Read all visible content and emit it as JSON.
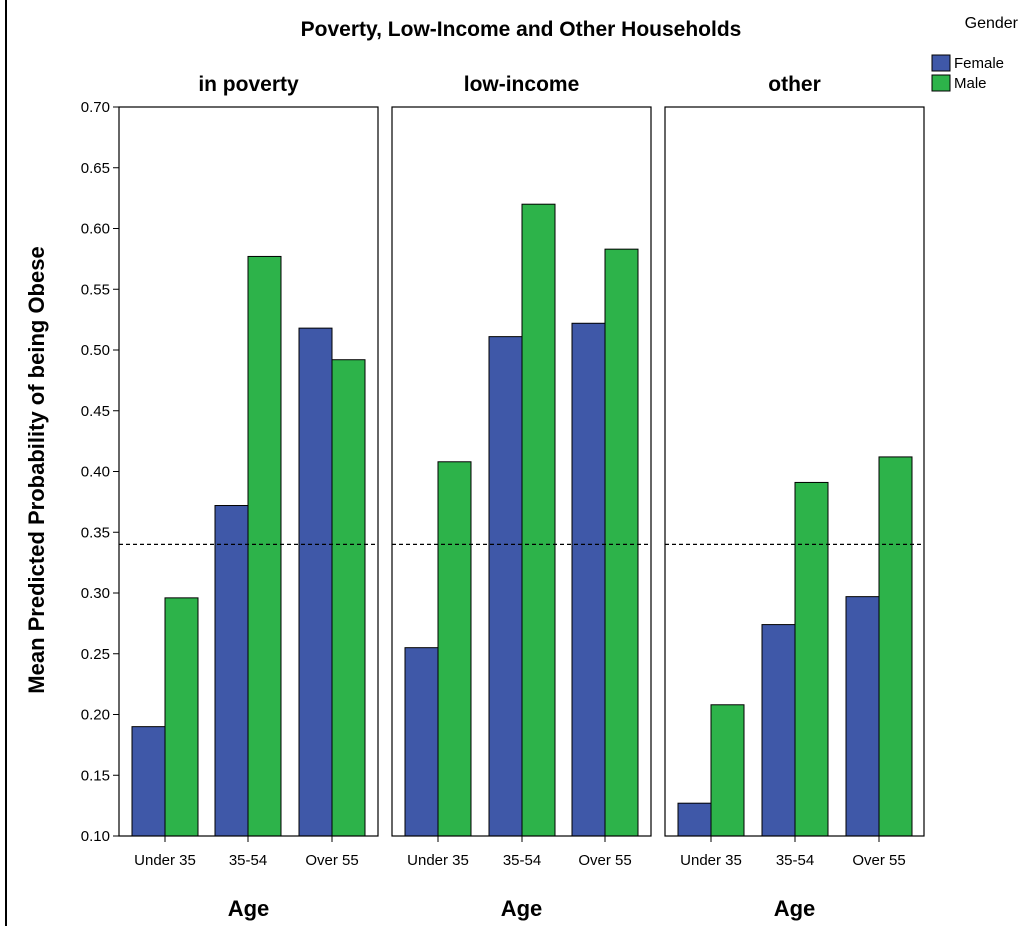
{
  "chart_data": {
    "type": "bar",
    "title": "Poverty, Low-Income and Other Households",
    "ylabel": "Mean Predicted Probability of being Obese",
    "xlabel": "Age",
    "ylim": [
      0.1,
      0.7
    ],
    "yticks": [
      "0.10",
      "0.15",
      "0.20",
      "0.25",
      "0.30",
      "0.35",
      "0.40",
      "0.45",
      "0.50",
      "0.55",
      "0.60",
      "0.65",
      "0.70"
    ],
    "reference_line": 0.34,
    "categories": [
      "Under 35",
      "35-54",
      "Over 55"
    ],
    "legend": {
      "title": "Gender",
      "placement": "top-right"
    },
    "colors": {
      "Female": "#3f58a8",
      "Male": "#2db34a"
    },
    "panels": [
      {
        "title": "in poverty",
        "series": [
          {
            "name": "Female",
            "values": [
              0.19,
              0.372,
              0.518
            ]
          },
          {
            "name": "Male",
            "values": [
              0.296,
              0.577,
              0.492
            ]
          }
        ]
      },
      {
        "title": "low-income",
        "series": [
          {
            "name": "Female",
            "values": [
              0.255,
              0.511,
              0.522
            ]
          },
          {
            "name": "Male",
            "values": [
              0.408,
              0.62,
              0.583
            ]
          }
        ]
      },
      {
        "title": "other",
        "series": [
          {
            "name": "Female",
            "values": [
              0.127,
              0.274,
              0.297
            ]
          },
          {
            "name": "Male",
            "values": [
              0.208,
              0.391,
              0.412
            ]
          }
        ]
      }
    ]
  }
}
